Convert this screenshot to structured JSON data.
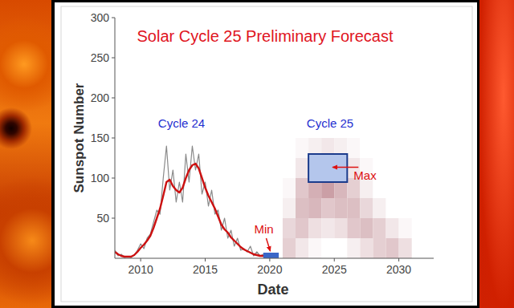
{
  "chart_data": {
    "type": "line",
    "title": "Solar Cycle 25 Preliminary Forecast",
    "x_label": "Date",
    "y_label": "Sunspot Number",
    "annotations": [
      "Cycle 24",
      "Cycle 25"
    ],
    "x": [
      2008,
      2008.25,
      2008.5,
      2008.75,
      2009,
      2009.25,
      2009.5,
      2009.75,
      2010,
      2010.25,
      2010.5,
      2010.75,
      2011,
      2011.25,
      2011.5,
      2011.75,
      2012,
      2012.25,
      2012.5,
      2012.75,
      2013,
      2013.25,
      2013.5,
      2013.75,
      2014,
      2014.25,
      2014.5,
      2014.75,
      2015,
      2015.25,
      2015.5,
      2015.75,
      2016,
      2016.25,
      2016.5,
      2016.75,
      2017,
      2017.25,
      2017.5,
      2017.75,
      2018,
      2018.25,
      2018.5,
      2018.75,
      2019,
      2019.25,
      2019.5,
      2019.75,
      2020
    ],
    "series": [
      {
        "color": "#8a8a8a",
        "line_style": "solid",
        "values": [
          10,
          3,
          5,
          1,
          2,
          1,
          4,
          10,
          18,
          12,
          25,
          30,
          45,
          60,
          55,
          100,
          140,
          85,
          110,
          70,
          95,
          70,
          130,
          95,
          140,
          110,
          130,
          80,
          95,
          65,
          85,
          55,
          60,
          35,
          50,
          25,
          35,
          15,
          25,
          10,
          12,
          8,
          15,
          3,
          8,
          3,
          5,
          1,
          3
        ]
      },
      {
        "color": "#cc1111",
        "line_style": "solid",
        "values": [
          8,
          5,
          3,
          2,
          2,
          2,
          4,
          8,
          13,
          17,
          22,
          28,
          38,
          50,
          62,
          78,
          95,
          98,
          90,
          85,
          82,
          88,
          100,
          110,
          116,
          118,
          112,
          100,
          88,
          78,
          70,
          62,
          52,
          42,
          36,
          32,
          26,
          22,
          18,
          14,
          11,
          9,
          7,
          5,
          4,
          3,
          3,
          2,
          2
        ]
      }
    ],
    "forecast_cells": {
      "x_bins": [
        2021,
        2022,
        2023,
        2024,
        2025,
        2026,
        2027,
        2028,
        2029,
        2030,
        2031
      ],
      "y_bins": [
        0,
        25,
        50,
        75,
        100,
        125,
        150
      ],
      "values": [
        [
          0.3,
          0.15,
          0.05,
          0,
          0,
          0.1,
          0.2,
          0.3,
          0.35,
          0.2
        ],
        [
          0.25,
          0.35,
          0.2,
          0.15,
          0.2,
          0.35,
          0.4,
          0.3,
          0.15,
          0.05
        ],
        [
          0.1,
          0.4,
          0.45,
          0.35,
          0.4,
          0.4,
          0.25,
          0.1,
          0,
          0
        ],
        [
          0.05,
          0.35,
          0.5,
          0.6,
          0.45,
          0.3,
          0.1,
          0,
          0,
          0
        ],
        [
          0,
          0.15,
          0.3,
          0.4,
          0.35,
          0.15,
          0.05,
          0,
          0,
          0
        ],
        [
          0,
          0.05,
          0.1,
          0.15,
          0.1,
          0.05,
          0,
          0,
          0,
          0
        ]
      ],
      "color": "#a85f6a"
    },
    "forecast_min": {
      "label": "Min",
      "x": [
        2019.5,
        2020.7
      ],
      "y": [
        0,
        7
      ],
      "color": "#3a66c8"
    },
    "forecast_max": {
      "label": "Max",
      "x": [
        2023,
        2026
      ],
      "y": [
        95,
        130
      ],
      "color": "#b4c6ec"
    },
    "xlim": [
      2008,
      2032.7
    ],
    "ylim": [
      0,
      300
    ],
    "xticks": [
      2010,
      2015,
      2020,
      2025,
      2030
    ],
    "yticks": [
      50,
      100,
      150,
      200,
      250,
      300
    ],
    "grid": false
  }
}
